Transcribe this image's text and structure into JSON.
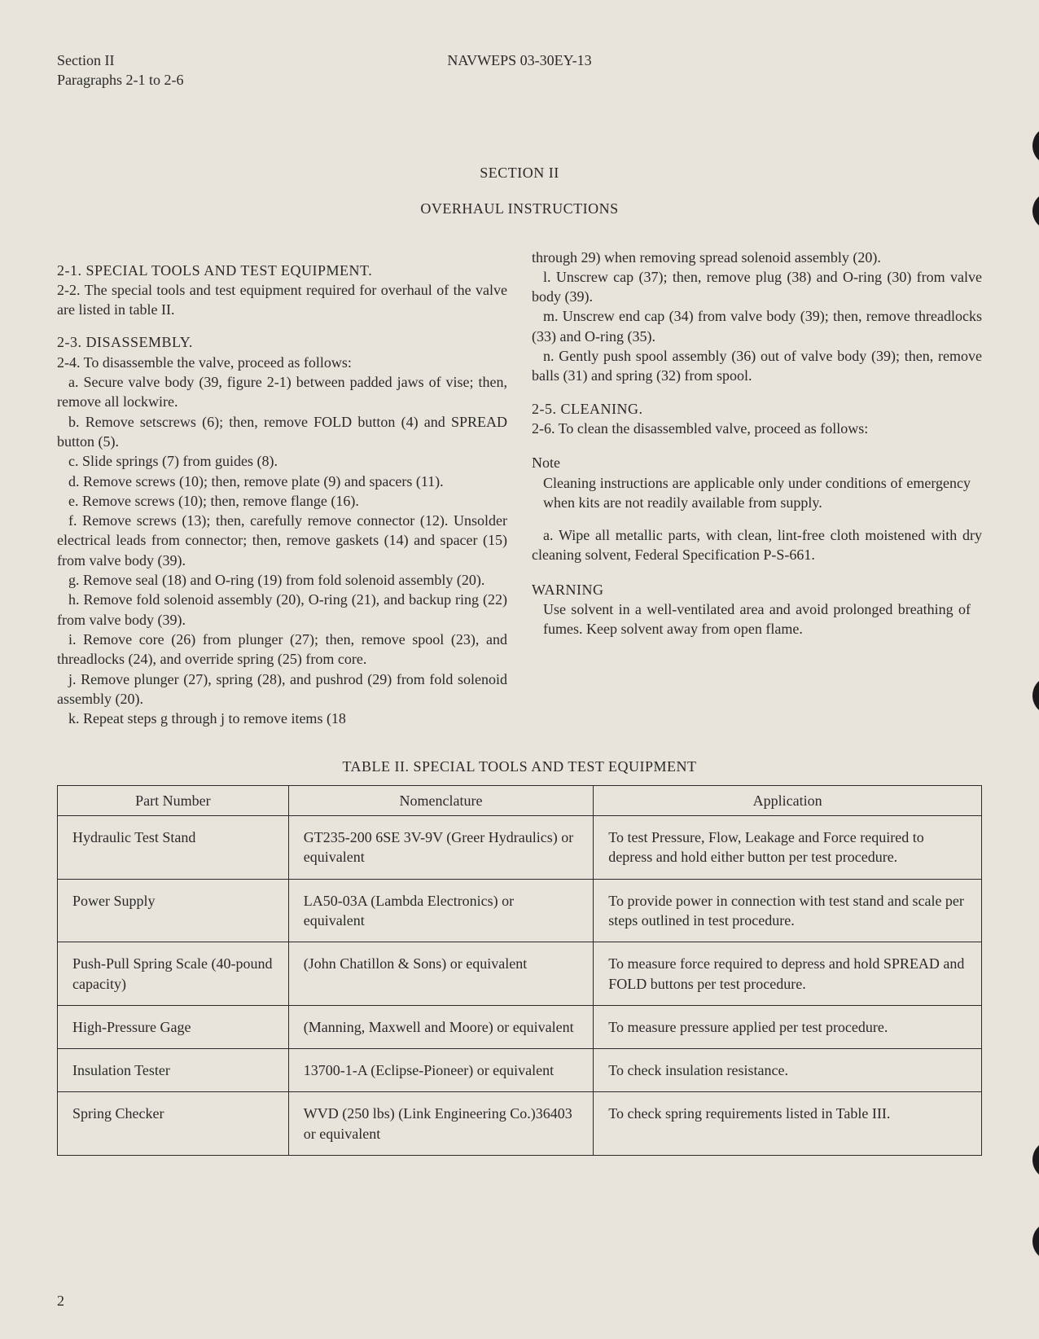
{
  "header": {
    "section_line": "Section II",
    "para_line": "Paragraphs 2-1 to 2-6",
    "doc_id": "NAVWEPS 03-30EY-13"
  },
  "titles": {
    "section": "SECTION II",
    "subtitle": "OVERHAUL INSTRUCTIONS"
  },
  "left_col": {
    "h1": "2-1. SPECIAL TOOLS AND TEST EQUIPMENT.",
    "p1": "2-2. The special tools and test equipment required for overhaul of the valve are listed in table II.",
    "h2": "2-3. DISASSEMBLY.",
    "p2": "2-4. To disassemble the valve, proceed as follows:",
    "a": "a. Secure valve body (39, figure 2-1) between padded jaws of vise; then, remove all lockwire.",
    "b": "b. Remove setscrews (6); then, remove FOLD button (4) and SPREAD button (5).",
    "c": "c. Slide springs (7) from guides (8).",
    "d": "d. Remove screws (10); then, remove plate (9) and spacers (11).",
    "e": "e. Remove screws (10); then, remove flange (16).",
    "f": "f. Remove screws (13); then, carefully remove connector (12). Unsolder electrical leads from connector; then, remove gaskets (14) and spacer (15) from valve body (39).",
    "g": "g. Remove seal (18) and O-ring (19) from fold solenoid assembly (20).",
    "h": "h. Remove fold solenoid assembly (20), O-ring (21), and backup ring (22) from valve body (39).",
    "i": "i. Remove core (26) from plunger (27); then, remove spool (23), and threadlocks (24), and override spring (25) from core.",
    "j": "j. Remove plunger (27), spring (28), and pushrod (29) from fold solenoid assembly (20).",
    "k": "k. Repeat steps g through j to remove items (18"
  },
  "right_col": {
    "cont": "through 29) when removing spread solenoid assembly (20).",
    "l": "l. Unscrew cap (37); then, remove plug (38) and O-ring (30) from valve body (39).",
    "m": "m. Unscrew end cap (34) from valve body (39); then, remove threadlocks (33) and O-ring (35).",
    "n": "n. Gently push spool assembly (36) out of valve body (39); then, remove balls (31) and spring (32) from spool.",
    "h3": "2-5. CLEANING.",
    "p3": "2-6. To clean the disassembled valve, proceed as follows:",
    "note_label": "Note",
    "note_body": "Cleaning instructions are applicable only under conditions of emergency when kits are not readily available from supply.",
    "a2": "a. Wipe all metallic parts, with clean, lint-free cloth moistened with dry cleaning solvent, Federal Specification P-S-661.",
    "warn_label": "WARNING",
    "warn_body": "Use solvent in a well-ventilated area and avoid prolonged breathing of fumes. Keep solvent away from open flame."
  },
  "table": {
    "caption": "TABLE II. SPECIAL TOOLS AND TEST EQUIPMENT",
    "columns": [
      "Part Number",
      "Nomenclature",
      "Application"
    ],
    "rows": [
      [
        "Hydraulic Test Stand",
        "GT235-200 6SE 3V-9V (Greer Hydraulics) or equivalent",
        "To test Pressure, Flow, Leakage and Force required to depress and hold either button per test procedure."
      ],
      [
        "Power Supply",
        "LA50-03A (Lambda Electronics) or equivalent",
        "To provide power in connection with test stand and scale per steps outlined in test procedure."
      ],
      [
        "Push-Pull Spring Scale (40-pound capacity)",
        "(John Chatillon & Sons) or equivalent",
        "To measure force required to depress and hold SPREAD and FOLD buttons per test procedure."
      ],
      [
        "High-Pressure Gage",
        "(Manning, Maxwell and Moore) or equivalent",
        "To measure pressure applied per test procedure."
      ],
      [
        "Insulation Tester",
        "13700-1-A (Eclipse-Pioneer) or equivalent",
        "To check insulation resistance."
      ],
      [
        "Spring Checker",
        "WVD (250 lbs) (Link Engineering Co.)36403 or equivalent",
        "To check spring requirements listed in Table III."
      ]
    ]
  },
  "page_number": "2",
  "punch_color": "#1a1a1a",
  "bg_color": "#e8e4db",
  "text_color": "#2a2a2a"
}
